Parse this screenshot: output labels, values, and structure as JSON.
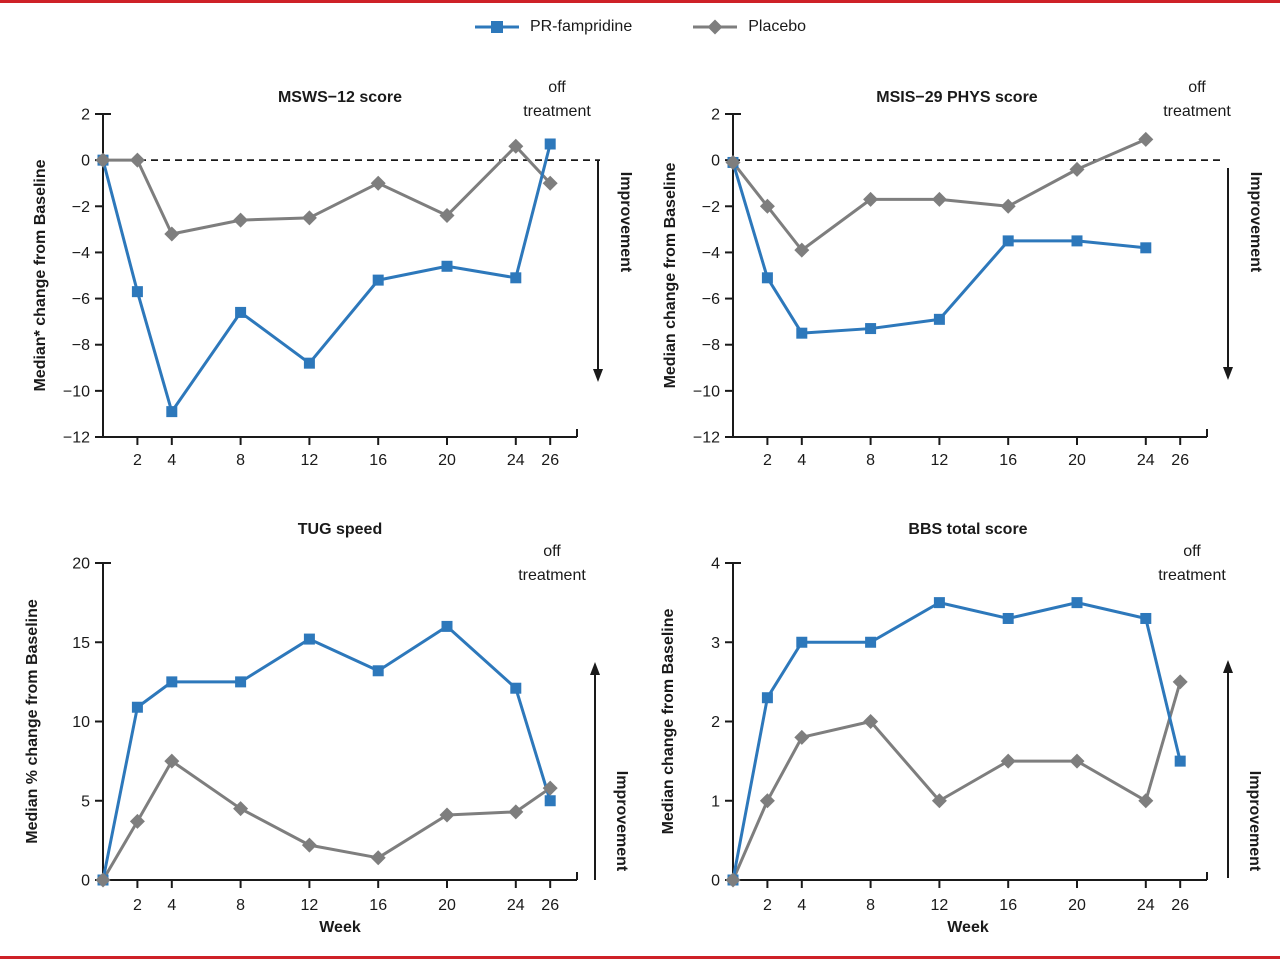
{
  "page": {
    "background": "#ffffff",
    "border_color": "#ce2127",
    "text_color": "#1a1a1a"
  },
  "legend": {
    "items": [
      {
        "label": "PR-fampridine",
        "color": "#2d78bb",
        "marker": "square"
      },
      {
        "label": "Placebo",
        "color": "#7e7e7e",
        "marker": "diamond"
      }
    ]
  },
  "chart_data": [
    {
      "type": "line",
      "title": "MSWS-12 score",
      "ylabel": "Median* change from Baseline",
      "xlabel": "",
      "ylim": [
        -12,
        2
      ],
      "yticks": [
        2,
        0,
        -2,
        -4,
        -6,
        -8,
        -10,
        -12
      ],
      "xticks": [
        2,
        4,
        8,
        12,
        16,
        20,
        24,
        26
      ],
      "xlim": [
        0,
        27.5
      ],
      "grid": false,
      "zero_line_dashed": true,
      "off_treatment_label": "off treatment",
      "improvement": {
        "label": "Improvement",
        "direction": "down"
      },
      "x_weeks": [
        0,
        2,
        4,
        8,
        12,
        16,
        20,
        24,
        26
      ],
      "series": [
        {
          "name": "PR-fampridine",
          "marker": "square",
          "color": "#2d78bb",
          "values": [
            0,
            -5.7,
            -10.9,
            -6.6,
            -8.8,
            -5.2,
            -4.6,
            -5.1,
            0.7
          ]
        },
        {
          "name": "Placebo",
          "marker": "diamond",
          "color": "#7e7e7e",
          "values": [
            0,
            0,
            -3.2,
            -2.6,
            -2.5,
            -1.0,
            -2.4,
            0.6,
            -1.0
          ]
        }
      ]
    },
    {
      "type": "line",
      "title": "MSIS-29 PHYS score",
      "ylabel": "Median change from Baseline",
      "xlabel": "",
      "ylim": [
        -12,
        2
      ],
      "yticks": [
        2,
        0,
        -2,
        -4,
        -6,
        -8,
        -10,
        -12
      ],
      "xticks": [
        2,
        4,
        8,
        12,
        16,
        20,
        24,
        26
      ],
      "xlim": [
        0,
        27.5
      ],
      "grid": false,
      "zero_line_dashed": true,
      "off_treatment_label": "off treatment",
      "improvement": {
        "label": "Improvement",
        "direction": "down"
      },
      "x_weeks": [
        0,
        2,
        4,
        8,
        12,
        16,
        20,
        24
      ],
      "series": [
        {
          "name": "PR-fampridine",
          "marker": "square",
          "color": "#2d78bb",
          "values": [
            -0.1,
            -5.1,
            -7.5,
            -7.3,
            -6.9,
            -3.5,
            -3.5,
            -3.8
          ]
        },
        {
          "name": "Placebo",
          "marker": "diamond",
          "color": "#7e7e7e",
          "values": [
            -0.1,
            -2.0,
            -3.9,
            -1.7,
            -1.7,
            -2.0,
            -0.4,
            0.9
          ]
        }
      ]
    },
    {
      "type": "line",
      "title": "TUG speed",
      "ylabel": "Median % change from Baseline",
      "xlabel": "Week",
      "ylim": [
        0,
        20
      ],
      "yticks": [
        20,
        15,
        10,
        5,
        0
      ],
      "xticks": [
        2,
        4,
        8,
        12,
        16,
        20,
        24,
        26
      ],
      "xlim": [
        0,
        27.5
      ],
      "grid": false,
      "zero_line_dashed": false,
      "off_treatment_label": "off treatment",
      "improvement": {
        "label": "Improvement",
        "direction": "up"
      },
      "x_weeks": [
        0,
        2,
        4,
        8,
        12,
        16,
        20,
        24,
        26
      ],
      "series": [
        {
          "name": "PR-fampridine",
          "marker": "square",
          "color": "#2d78bb",
          "values": [
            0,
            10.9,
            12.5,
            12.5,
            15.2,
            13.2,
            16.0,
            12.1,
            5.0
          ]
        },
        {
          "name": "Placebo",
          "marker": "diamond",
          "color": "#7e7e7e",
          "values": [
            0,
            3.7,
            7.5,
            4.5,
            2.2,
            1.4,
            4.1,
            4.3,
            5.8
          ]
        }
      ]
    },
    {
      "type": "line",
      "title": "BBS total score",
      "ylabel": "Median change from Baseline",
      "xlabel": "Week",
      "ylim": [
        0,
        4
      ],
      "yticks": [
        4,
        3,
        2,
        1,
        0
      ],
      "xticks": [
        2,
        4,
        8,
        12,
        16,
        20,
        24,
        26
      ],
      "xlim": [
        0,
        27.5
      ],
      "grid": false,
      "zero_line_dashed": false,
      "off_treatment_label": "off treatment",
      "improvement": {
        "label": "Improvement",
        "direction": "up"
      },
      "x_weeks": [
        0,
        2,
        4,
        8,
        12,
        16,
        20,
        24,
        26
      ],
      "series": [
        {
          "name": "PR-fampridine",
          "marker": "square",
          "color": "#2d78bb",
          "values": [
            0,
            2.3,
            3.0,
            3.0,
            3.5,
            3.3,
            3.5,
            3.3,
            1.5
          ]
        },
        {
          "name": "Placebo",
          "marker": "diamond",
          "color": "#7e7e7e",
          "values": [
            0,
            1.0,
            1.8,
            2.0,
            1.0,
            1.5,
            1.5,
            1.0,
            2.5
          ]
        }
      ]
    }
  ]
}
